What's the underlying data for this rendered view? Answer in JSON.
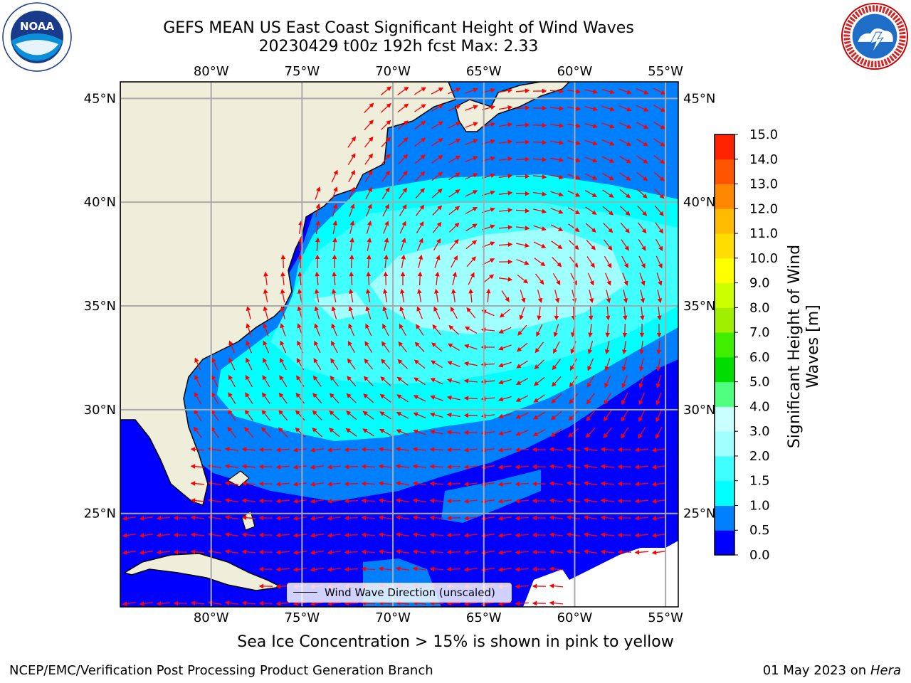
{
  "title": {
    "line1": "GEFS MEAN US East Coast Significant Height of Wind Waves",
    "line2": "20230429 t00z 192h fcst   Max: 2.33"
  },
  "logos": {
    "left": {
      "name": "noaa-logo",
      "text": "NOAA",
      "ring_text": "NATIONAL OCEANIC AND ATMOSPHERIC ADMINISTRATION · U.S. DEPARTMENT OF COMMERCE"
    },
    "right": {
      "name": "nws-logo",
      "ring_text": "NATIONAL WEATHER SERVICE"
    }
  },
  "map": {
    "lon_ticks": [
      "80°W",
      "75°W",
      "70°W",
      "65°W",
      "60°W",
      "55°W"
    ],
    "lat_ticks": [
      "45°N",
      "40°N",
      "35°N",
      "30°N",
      "25°N"
    ],
    "lon_values": [
      -80,
      -75,
      -70,
      -65,
      -60,
      -55
    ],
    "lat_values": [
      45,
      40,
      35,
      30,
      25
    ],
    "lon_range": [
      -85,
      -54.3
    ],
    "lat_range": [
      20.5,
      45.8
    ],
    "gridlines": true,
    "land_color": "#efeedb",
    "arrow_color": "#ff0000",
    "vector_legend": "Wind Wave Direction (unscaled)"
  },
  "colorbar": {
    "title": "Significant Height of Wind Waves [m]",
    "tick_labels": [
      "0.0",
      "0.5",
      "1.0",
      "1.5",
      "2.0",
      "3.0",
      "4.0",
      "5.0",
      "6.0",
      "7.0",
      "8.0",
      "9.0",
      "10.0",
      "11.0",
      "12.0",
      "13.0",
      "14.0",
      "15.0"
    ],
    "colors": [
      "#0000ff",
      "#0080ff",
      "#00ffff",
      "#40ffff",
      "#a0ffff",
      "#c8ffff",
      "#50ff80",
      "#00dd00",
      "#40ee00",
      "#a0ee00",
      "#ccff00",
      "#ffff00",
      "#ffdd00",
      "#ffbb00",
      "#ff8800",
      "#ff5500",
      "#ff2200",
      "#ff0000"
    ]
  },
  "note": "Sea Ice Concentration > 15% is shown in pink to yellow",
  "footer": {
    "left": "NCEP/EMC/Verification Post Processing Product Generation Branch",
    "date": "01 May 2023 on",
    "machine": "Hera"
  }
}
